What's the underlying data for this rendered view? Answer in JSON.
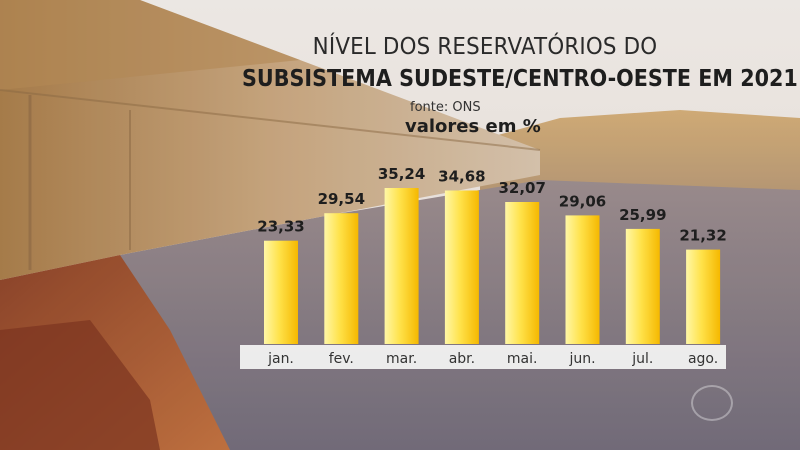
{
  "title_line1": "NÍVEL DOS RESERVATÓRIOS DO",
  "title_line2": "SUBSISTEMA SUDESTE/CENTRO-OESTE EM 2021",
  "source": "fonte: ONS",
  "subtitle": "valores em %",
  "colors": {
    "bar_light": "#fff7a6",
    "bar_mid": "#ffe24a",
    "bar_dark": "#f5b800",
    "label_strip": "#f2f2f2",
    "text_dark": "#1e1e1e"
  },
  "chart_data": {
    "type": "bar",
    "title": "NÍVEL DOS RESERVATÓRIOS DO SUBSISTEMA SUDESTE/CENTRO-OESTE EM 2021",
    "subtitle": "valores em %",
    "categories": [
      "jan.",
      "fev.",
      "mar.",
      "abr.",
      "mai.",
      "jun.",
      "jul.",
      "ago."
    ],
    "value_labels": [
      "23,33",
      "29,54",
      "35,24",
      "34,68",
      "32,07",
      "29,06",
      "25,99",
      "21,32"
    ],
    "values": [
      23.33,
      29.54,
      35.24,
      34.68,
      32.07,
      29.06,
      25.99,
      21.32
    ],
    "xlabel": "",
    "ylabel": "",
    "ylim": [
      0,
      35.24
    ],
    "grid": false,
    "legend": "none"
  }
}
